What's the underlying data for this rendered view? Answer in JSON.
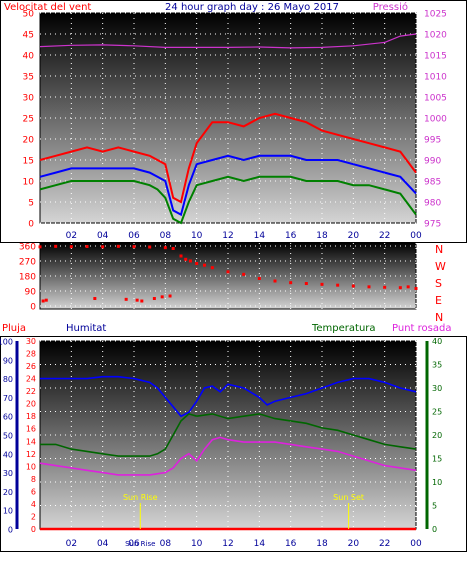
{
  "colors": {
    "wind": "#ff0000",
    "gust": "#ff0000",
    "wind_avg": "#0000ff",
    "wind_low": "#008000",
    "pressure": "#cc33cc",
    "direction": "#ff0000",
    "humidity": "#0000ff",
    "temperature": "#006600",
    "dewpoint": "#dd22dd",
    "rain": "#ff0000",
    "sun_marker": "#ffff00",
    "axis_dark_blue": "#000099",
    "axis_green": "#006600"
  },
  "chart_data": [
    {
      "type": "line",
      "title": "24 hour graph day : 26 Mayo 2017",
      "left_axis_label": "Velocitat del vent",
      "right_axis_label": "Pressió",
      "x_ticks": [
        "02",
        "04",
        "06",
        "08",
        "10",
        "12",
        "14",
        "16",
        "18",
        "20",
        "22",
        "00"
      ],
      "x_hours": [
        0,
        24
      ],
      "left_ylim": [
        0,
        50
      ],
      "left_ticks": [
        "0",
        "5",
        "10",
        "15",
        "20",
        "25",
        "30",
        "35",
        "40",
        "45",
        "50"
      ],
      "right_ylim": [
        975,
        1025
      ],
      "right_ticks": [
        "975",
        "980",
        "985",
        "990",
        "995",
        "1000",
        "1005",
        "1010",
        "1015",
        "1020",
        "1025"
      ],
      "series": [
        {
          "color_key": "gust",
          "x": [
            0,
            1,
            2,
            3,
            4,
            5,
            6,
            7,
            7.5,
            8,
            8.5,
            9,
            9.5,
            10,
            11,
            12,
            13,
            14,
            15,
            16,
            17,
            18,
            19,
            20,
            21,
            22,
            23,
            24
          ],
          "values": [
            15,
            16,
            17,
            18,
            17,
            18,
            17,
            16,
            15,
            14,
            6,
            5,
            13,
            19,
            24,
            24,
            23,
            25,
            26,
            25,
            24,
            22,
            21,
            20,
            19,
            18,
            17,
            12
          ]
        },
        {
          "color_key": "wind_avg",
          "x": [
            0,
            1,
            2,
            3,
            4,
            5,
            6,
            7,
            7.5,
            8,
            8.5,
            9,
            9.5,
            10,
            11,
            12,
            13,
            14,
            15,
            16,
            17,
            18,
            19,
            20,
            21,
            22,
            23,
            24
          ],
          "values": [
            11,
            12,
            13,
            13,
            13,
            13,
            13,
            12,
            11,
            10,
            3,
            2,
            9,
            14,
            15,
            16,
            15,
            16,
            16,
            16,
            15,
            15,
            15,
            14,
            13,
            12,
            11,
            7
          ]
        },
        {
          "color_key": "wind_low",
          "x": [
            0,
            1,
            2,
            3,
            4,
            5,
            6,
            7,
            7.5,
            8,
            8.5,
            9,
            9.5,
            10,
            11,
            12,
            13,
            14,
            15,
            16,
            17,
            18,
            19,
            20,
            21,
            22,
            23,
            24
          ],
          "values": [
            8,
            9,
            10,
            10,
            10,
            10,
            10,
            9,
            8,
            6,
            1,
            0,
            5,
            9,
            10,
            11,
            10,
            11,
            11,
            11,
            10,
            10,
            10,
            9,
            9,
            8,
            7,
            2
          ]
        },
        {
          "color_key": "pressure",
          "axis": "right",
          "x": [
            0,
            2,
            4,
            6,
            8,
            10,
            12,
            14,
            16,
            18,
            20,
            22,
            23,
            24
          ],
          "values": [
            1017,
            1017.3,
            1017.4,
            1017.2,
            1016.8,
            1016.8,
            1016.8,
            1016.9,
            1016.7,
            1016.8,
            1017.2,
            1018,
            1019.5,
            1020
          ]
        }
      ]
    },
    {
      "type": "scatter",
      "right_axis_label": "N W S E N",
      "right_labels": [
        "N",
        "W",
        "S",
        "E",
        "N"
      ],
      "x_hours": [
        0,
        24
      ],
      "ylim": [
        0,
        360
      ],
      "y_ticks": [
        "0",
        "90",
        "180",
        "270",
        "360"
      ],
      "series": [
        {
          "color_key": "direction",
          "x": [
            0,
            1,
            2,
            3,
            4,
            5,
            6,
            7,
            8,
            8.5,
            9,
            9.3,
            9.6,
            10,
            10.5,
            11,
            12,
            13,
            14,
            15,
            16,
            17,
            18,
            19,
            20,
            21,
            22,
            23,
            23.5,
            24
          ],
          "values": [
            355,
            358,
            356,
            357,
            355,
            358,
            356,
            354,
            350,
            345,
            300,
            280,
            270,
            255,
            245,
            230,
            205,
            190,
            165,
            150,
            140,
            135,
            130,
            125,
            120,
            115,
            112,
            110,
            115,
            105
          ]
        },
        {
          "color_key": "direction",
          "x": [
            0.2,
            0.4,
            3.5,
            5.5,
            6.2,
            6.5,
            7.3,
            7.8,
            8.3
          ],
          "values": [
            30,
            35,
            45,
            40,
            35,
            30,
            45,
            55,
            60
          ]
        }
      ]
    },
    {
      "type": "line",
      "labels": {
        "rain": "Pluja",
        "humidity": "Humitat",
        "temperature": "Temperatura",
        "dewpoint": "Punt rosada",
        "sunrise": "Sun Rise",
        "sunset": "Sun Set",
        "overlap": "Sun Rise"
      },
      "x_ticks": [
        "02",
        "04",
        "06",
        "08",
        "10",
        "12",
        "14",
        "16",
        "18",
        "20",
        "22",
        "00"
      ],
      "x_hours": [
        0,
        24
      ],
      "humidity_ylim": [
        0,
        100
      ],
      "humidity_ticks": [
        "0",
        "10",
        "20",
        "30",
        "40",
        "50",
        "60",
        "70",
        "80",
        "90",
        "100"
      ],
      "rain_ylim": [
        0,
        30
      ],
      "rain_ticks": [
        "0",
        "2",
        "4",
        "6",
        "8",
        "10",
        "12",
        "14",
        "16",
        "18",
        "20",
        "22",
        "24",
        "26",
        "28",
        "30"
      ],
      "temp_ylim": [
        0,
        40
      ],
      "temp_ticks": [
        "0",
        "5",
        "10",
        "15",
        "20",
        "25",
        "30",
        "35",
        "40"
      ],
      "sunrise_hour": 6.4,
      "sunset_hour": 19.7,
      "series": [
        {
          "color_key": "humidity",
          "axis": "humidity",
          "x": [
            0,
            2,
            3,
            4,
            5,
            6,
            7,
            7.5,
            8,
            8.5,
            9,
            9.5,
            10,
            10.5,
            11,
            11.5,
            12,
            13,
            14,
            14.5,
            15,
            16,
            17,
            18,
            19,
            20,
            21,
            22,
            23,
            24
          ],
          "values": [
            80,
            80,
            80,
            81,
            81,
            80,
            78,
            75,
            70,
            65,
            60,
            62,
            68,
            75,
            76,
            73,
            77,
            75,
            70,
            66,
            68,
            70,
            72,
            75,
            78,
            80,
            80,
            78,
            75,
            73
          ]
        },
        {
          "color_key": "temperature",
          "axis": "temp",
          "x": [
            0,
            1,
            2,
            3,
            4,
            5,
            6,
            7,
            7.5,
            8,
            8.5,
            9,
            9.5,
            10,
            11,
            12,
            13,
            14,
            15,
            16,
            17,
            18,
            19,
            20,
            21,
            22,
            23,
            24
          ],
          "values": [
            18,
            18,
            17,
            16.5,
            16,
            15.5,
            15.5,
            15.5,
            16,
            17,
            20,
            23,
            24.5,
            24,
            24.5,
            23.5,
            24,
            24.5,
            23.5,
            23,
            22.5,
            21.5,
            21,
            20,
            19,
            18,
            17.5,
            17
          ]
        },
        {
          "color_key": "dewpoint",
          "axis": "temp",
          "x": [
            0,
            1,
            2,
            3,
            4,
            5,
            6,
            7,
            8,
            8.5,
            9,
            9.5,
            10,
            10.5,
            11,
            11.5,
            12,
            13,
            14,
            15,
            16,
            17,
            18,
            19,
            20,
            21,
            22,
            23,
            24
          ],
          "values": [
            14,
            13.5,
            13,
            12.5,
            12,
            11.5,
            11.5,
            11.5,
            12,
            13,
            15,
            16,
            14.5,
            17,
            19,
            19.5,
            19,
            18.5,
            18.5,
            18.5,
            18,
            17.5,
            17,
            16.5,
            15.5,
            14.5,
            13.5,
            13,
            12.5
          ]
        },
        {
          "color_key": "rain",
          "axis": "rain",
          "x": [
            0,
            24
          ],
          "values": [
            0,
            0
          ]
        }
      ]
    }
  ]
}
